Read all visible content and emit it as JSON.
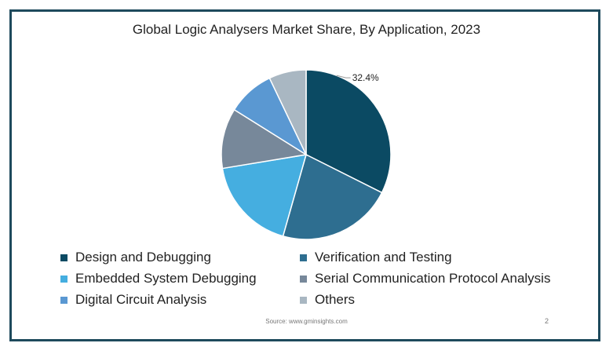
{
  "chart_data": {
    "type": "pie",
    "title": "Global Logic Analysers Market Share, By Application, 2023",
    "series": [
      {
        "name": "Design and Debugging",
        "value": 32.4,
        "color": "#0b4a63"
      },
      {
        "name": "Verification and Testing",
        "value": 22.0,
        "color": "#2e6e90"
      },
      {
        "name": "Embedded System Debugging",
        "value": 18.0,
        "color": "#45aee0"
      },
      {
        "name": "Serial Communication Protocol Analysis",
        "value": 11.5,
        "color": "#77889a"
      },
      {
        "name": "Digital Circuit Analysis",
        "value": 9.0,
        "color": "#5a98d2"
      },
      {
        "name": "Others",
        "value": 7.1,
        "color": "#a9b7c2"
      }
    ],
    "data_labels": [
      {
        "series": "Design and Debugging",
        "text": "32.4%"
      }
    ],
    "legend_position": "bottom"
  },
  "footer": {
    "source": "Source: www.gminsights.com",
    "page_number": "2"
  }
}
